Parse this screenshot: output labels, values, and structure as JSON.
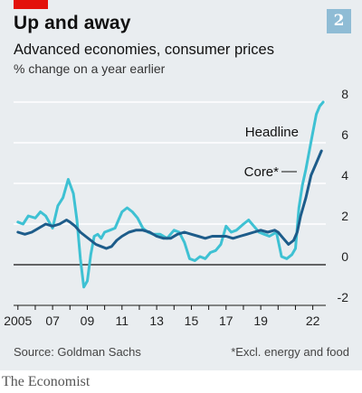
{
  "header": {
    "title": "Up and away",
    "subtitle": "Advanced economies, consumer prices",
    "unit_label": "% change on a year earlier",
    "badge": "2"
  },
  "source": "Source: Goldman Sachs",
  "footnote": "*Excl. energy and food",
  "publisher": "The Economist",
  "colors": {
    "accent": "#e3120b",
    "headline": "#3ec1d3",
    "core": "#1d5c8a",
    "background": "#e9edf0",
    "grid": "#ffffff",
    "badge": "#8fbcd5"
  },
  "chart_data": {
    "type": "line",
    "title": "Advanced economies, consumer prices",
    "ylabel": "% change on a year earlier",
    "ylim": [
      -2,
      8
    ],
    "yticks": [
      -2,
      0,
      2,
      4,
      6,
      8
    ],
    "ytick_labels": [
      "-2",
      "0",
      "2",
      "4",
      "6",
      "8"
    ],
    "xlim": [
      2004.75,
      2022.75
    ],
    "xticks": [
      2005,
      2007,
      2009,
      2011,
      2013,
      2015,
      2017,
      2019,
      2022
    ],
    "xtick_labels": [
      "2005",
      "07",
      "09",
      "11",
      "13",
      "15",
      "17",
      "19",
      "22"
    ],
    "grid": true,
    "series": [
      {
        "name": "Headline",
        "x": [
          2005.0,
          2005.3,
          2005.6,
          2006.0,
          2006.3,
          2006.6,
          2007.0,
          2007.3,
          2007.6,
          2007.9,
          2008.2,
          2008.4,
          2008.6,
          2008.8,
          2009.0,
          2009.2,
          2009.4,
          2009.6,
          2009.8,
          2010.0,
          2010.3,
          2010.6,
          2011.0,
          2011.3,
          2011.6,
          2011.9,
          2012.2,
          2012.5,
          2012.8,
          2013.2,
          2013.6,
          2014.0,
          2014.3,
          2014.6,
          2014.9,
          2015.2,
          2015.5,
          2015.8,
          2016.1,
          2016.4,
          2016.7,
          2017.0,
          2017.3,
          2017.6,
          2018.0,
          2018.3,
          2018.6,
          2018.9,
          2019.2,
          2019.5,
          2019.9,
          2020.2,
          2020.5,
          2020.8,
          2021.0,
          2021.2,
          2021.4,
          2021.6,
          2021.8,
          2022.0,
          2022.2,
          2022.4,
          2022.6
        ],
        "values": [
          2.1,
          2.0,
          2.4,
          2.3,
          2.6,
          2.4,
          1.8,
          2.9,
          3.3,
          4.2,
          3.5,
          2.2,
          0.3,
          -1.1,
          -0.8,
          0.5,
          1.4,
          1.5,
          1.3,
          1.6,
          1.7,
          1.8,
          2.6,
          2.8,
          2.6,
          2.3,
          1.8,
          1.6,
          1.5,
          1.5,
          1.3,
          1.7,
          1.6,
          1.1,
          0.3,
          0.2,
          0.4,
          0.3,
          0.6,
          0.7,
          1.0,
          1.9,
          1.6,
          1.7,
          2.0,
          2.2,
          1.9,
          1.6,
          1.5,
          1.4,
          1.6,
          0.4,
          0.3,
          0.5,
          0.8,
          2.8,
          3.9,
          4.7,
          5.6,
          6.5,
          7.4,
          7.8,
          8.0
        ]
      },
      {
        "name": "Core*",
        "x": [
          2005.0,
          2005.4,
          2005.8,
          2006.2,
          2006.6,
          2007.0,
          2007.4,
          2007.8,
          2008.0,
          2008.3,
          2008.6,
          2008.9,
          2009.2,
          2009.5,
          2009.8,
          2010.1,
          2010.4,
          2010.7,
          2011.0,
          2011.4,
          2011.8,
          2012.2,
          2012.6,
          2013.0,
          2013.4,
          2013.8,
          2014.2,
          2014.6,
          2015.0,
          2015.4,
          2015.8,
          2016.2,
          2016.6,
          2017.0,
          2017.4,
          2017.8,
          2018.2,
          2018.6,
          2019.0,
          2019.4,
          2019.8,
          2020.0,
          2020.3,
          2020.6,
          2020.9,
          2021.1,
          2021.3,
          2021.6,
          2021.9,
          2022.2,
          2022.5
        ],
        "values": [
          1.6,
          1.5,
          1.6,
          1.8,
          2.0,
          1.9,
          2.0,
          2.2,
          2.1,
          1.9,
          1.6,
          1.4,
          1.2,
          1.0,
          0.9,
          0.8,
          0.9,
          1.2,
          1.4,
          1.6,
          1.7,
          1.7,
          1.6,
          1.4,
          1.3,
          1.3,
          1.5,
          1.6,
          1.5,
          1.4,
          1.3,
          1.4,
          1.4,
          1.4,
          1.3,
          1.4,
          1.5,
          1.6,
          1.7,
          1.6,
          1.7,
          1.6,
          1.3,
          1.0,
          1.2,
          1.6,
          2.4,
          3.3,
          4.4,
          5.0,
          5.6
        ]
      }
    ],
    "legend": "inline labels next to lines"
  }
}
